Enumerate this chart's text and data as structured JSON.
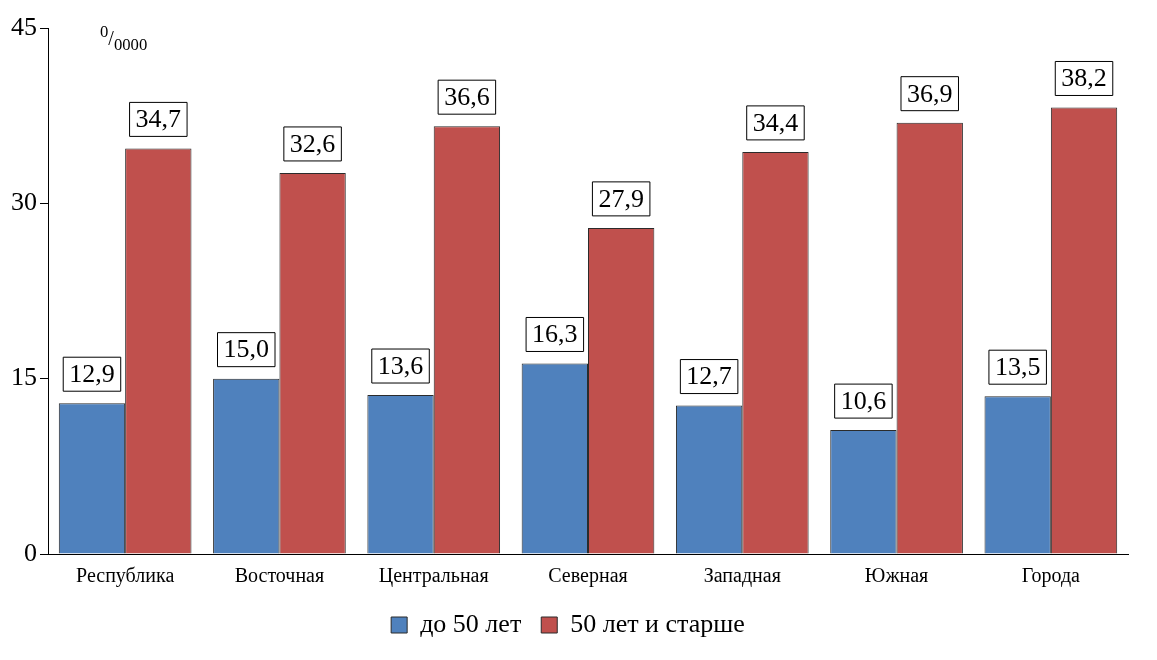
{
  "chart_data": {
    "type": "bar",
    "categories": [
      "Республика",
      "Восточная",
      "Центральная",
      "Северная",
      "Западная",
      "Южная",
      "Города"
    ],
    "series": [
      {
        "name": "до 50 лет",
        "color": "#4f81bd",
        "values": [
          12.9,
          15.0,
          13.6,
          16.3,
          12.7,
          10.6,
          13.5
        ],
        "value_labels": [
          "12,9",
          "15,0",
          "13,6",
          "16,3",
          "12,7",
          "10,6",
          "13,5"
        ]
      },
      {
        "name": "50 лет и старше",
        "color": "#c0504d",
        "values": [
          34.7,
          32.6,
          36.6,
          27.9,
          34.4,
          36.9,
          38.2
        ],
        "value_labels": [
          "34,7",
          "32,6",
          "36,6",
          "27,9",
          "34,4",
          "36,9",
          "38,2"
        ]
      }
    ],
    "ylim": [
      0,
      45
    ],
    "yticks": [
      0,
      15,
      30,
      45
    ],
    "grid": false,
    "legend": "bottom",
    "annotations": [
      "$^{0}$/$_{0000}$"
    ]
  }
}
